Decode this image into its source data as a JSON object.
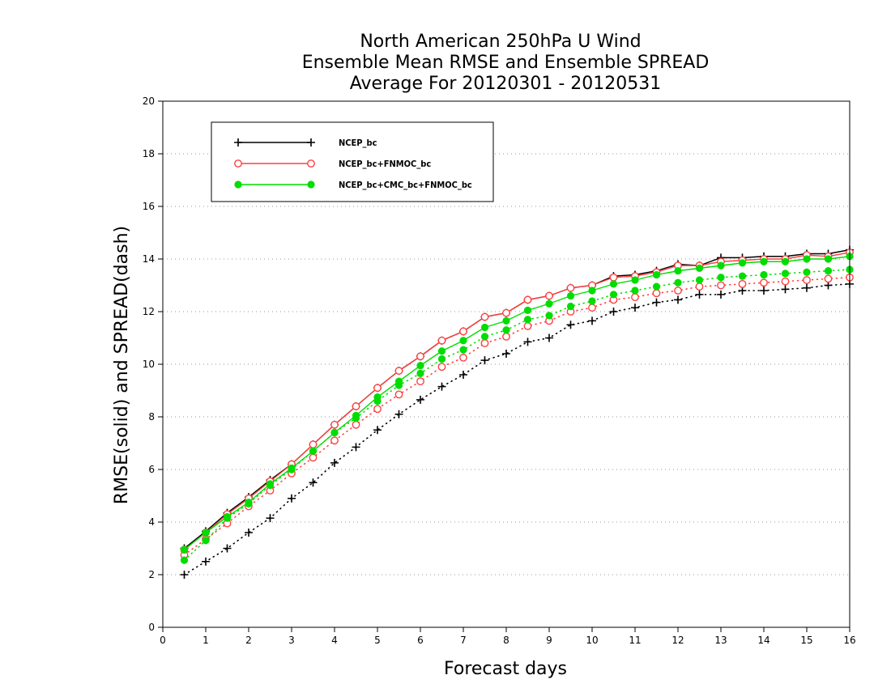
{
  "chart_data": {
    "type": "line",
    "title_lines": [
      "North American 250hPa U Wind",
      "Ensemble Mean RMSE and Ensemble SPREAD",
      "Average For 20120301 - 20120531"
    ],
    "xlabel": "Forecast days",
    "ylabel": "RMSE(solid) and SPREAD(dash)",
    "xlim": [
      0,
      16
    ],
    "ylim": [
      0,
      20
    ],
    "x_ticks": [
      0,
      1,
      2,
      3,
      4,
      5,
      6,
      7,
      8,
      9,
      10,
      11,
      12,
      13,
      14,
      15,
      16
    ],
    "y_ticks": [
      0,
      2,
      4,
      6,
      8,
      10,
      12,
      14,
      16,
      18,
      20
    ],
    "grid": true,
    "legend_position": "top-left",
    "x": [
      0.5,
      1,
      1.5,
      2,
      2.5,
      3,
      3.5,
      4,
      4.5,
      5,
      5.5,
      6,
      6.5,
      7,
      7.5,
      8,
      8.5,
      9,
      9.5,
      10,
      10.5,
      11,
      11.5,
      12,
      12.5,
      13,
      13.5,
      14,
      14.5,
      15,
      15.5,
      16
    ],
    "series": [
      {
        "name": "NCEP_bc",
        "color": "#000000",
        "marker": "plus",
        "rmse": [
          3.0,
          3.65,
          4.35,
          4.95,
          5.6,
          6.2,
          6.95,
          7.7,
          8.4,
          9.1,
          9.75,
          10.3,
          10.9,
          11.25,
          11.8,
          11.95,
          12.45,
          12.6,
          12.9,
          13.0,
          13.35,
          13.4,
          13.55,
          13.8,
          13.75,
          14.05,
          14.05,
          14.1,
          14.1,
          14.2,
          14.2,
          14.35
        ],
        "spread": [
          2.0,
          2.5,
          3.0,
          3.6,
          4.15,
          4.9,
          5.5,
          6.25,
          6.85,
          7.5,
          8.1,
          8.65,
          9.15,
          9.6,
          10.15,
          10.4,
          10.85,
          11.0,
          11.5,
          11.65,
          12.0,
          12.15,
          12.35,
          12.45,
          12.65,
          12.65,
          12.8,
          12.8,
          12.85,
          12.9,
          13.0,
          13.05
        ]
      },
      {
        "name": "NCEP_bc+FNMOC_bc",
        "color": "#ff4040",
        "marker": "open-circle",
        "rmse": [
          2.95,
          3.6,
          4.3,
          4.9,
          5.55,
          6.2,
          6.95,
          7.7,
          8.4,
          9.1,
          9.75,
          10.3,
          10.9,
          11.25,
          11.8,
          11.95,
          12.45,
          12.6,
          12.9,
          13.0,
          13.3,
          13.35,
          13.5,
          13.75,
          13.75,
          13.9,
          13.95,
          14.0,
          14.0,
          14.15,
          14.1,
          14.25
        ],
        "spread": [
          2.75,
          3.35,
          3.95,
          4.6,
          5.2,
          5.85,
          6.45,
          7.1,
          7.7,
          8.3,
          8.85,
          9.35,
          9.9,
          10.25,
          10.8,
          11.05,
          11.45,
          11.65,
          12.0,
          12.15,
          12.45,
          12.55,
          12.7,
          12.8,
          12.95,
          13.0,
          13.05,
          13.1,
          13.15,
          13.2,
          13.25,
          13.3
        ]
      },
      {
        "name": "NCEP_bc+CMC_bc+FNMOC_bc",
        "color": "#00dd00",
        "marker": "filled-circle",
        "rmse": [
          2.95,
          3.6,
          4.2,
          4.75,
          5.45,
          6.05,
          6.7,
          7.4,
          8.05,
          8.75,
          9.35,
          9.95,
          10.5,
          10.9,
          11.4,
          11.65,
          12.05,
          12.3,
          12.6,
          12.8,
          13.05,
          13.2,
          13.4,
          13.55,
          13.65,
          13.75,
          13.85,
          13.9,
          13.9,
          14.0,
          14.0,
          14.1
        ],
        "spread": [
          2.55,
          3.3,
          4.15,
          4.7,
          5.4,
          6.0,
          6.7,
          7.4,
          7.95,
          8.6,
          9.2,
          9.65,
          10.2,
          10.55,
          11.05,
          11.3,
          11.7,
          11.85,
          12.2,
          12.4,
          12.65,
          12.8,
          12.95,
          13.1,
          13.2,
          13.3,
          13.35,
          13.4,
          13.45,
          13.5,
          13.55,
          13.6
        ]
      }
    ]
  }
}
